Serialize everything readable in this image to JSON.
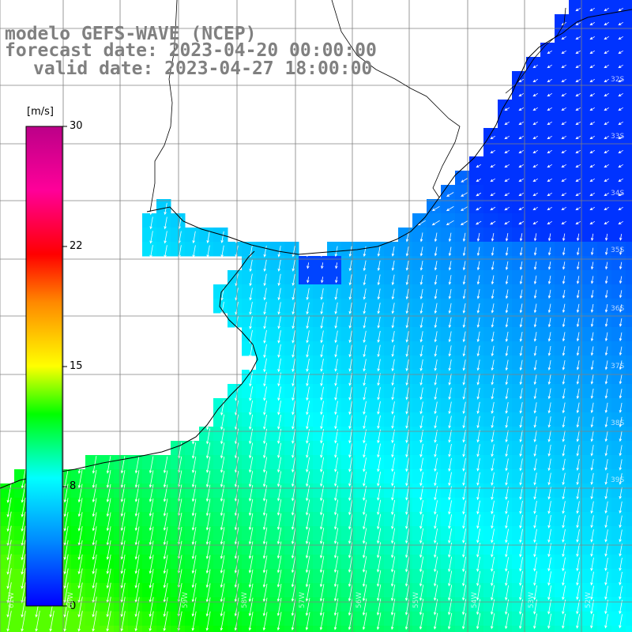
{
  "title": {
    "line1": "modelo GEFS-WAVE (NCEP)",
    "line2": "forecast date: 2023-04-20 00:00:00",
    "line3": "valid date: 2023-04-27 18:00:00"
  },
  "colorbar": {
    "unit": "[m/s]",
    "ticks": [
      "30",
      "22",
      "15",
      "8",
      "0"
    ],
    "stops": [
      {
        "value": 0,
        "color": "#0000ff"
      },
      {
        "value": 4,
        "color": "#0088ff"
      },
      {
        "value": 8,
        "color": "#00ffff"
      },
      {
        "value": 12,
        "color": "#00ff00"
      },
      {
        "value": 15,
        "color": "#ffff00"
      },
      {
        "value": 19,
        "color": "#ff8800"
      },
      {
        "value": 22,
        "color": "#ff0000"
      },
      {
        "value": 26,
        "color": "#ff0099"
      },
      {
        "value": 30,
        "color": "#bb0088"
      }
    ]
  },
  "grid": {
    "latitude_labels": [
      "32S",
      "33S",
      "34S",
      "35S",
      "36S",
      "37S",
      "38S",
      "39S"
    ],
    "longitude_labels": [
      "61W",
      "60W",
      "59W",
      "58W",
      "57W",
      "56W",
      "55W",
      "54W",
      "53W",
      "52W",
      "51W"
    ]
  },
  "map_style": {
    "land_color": "#ffffff",
    "grid_color": "#808080",
    "coast_color": "#000000",
    "arrow_color": "#ffffff"
  }
}
